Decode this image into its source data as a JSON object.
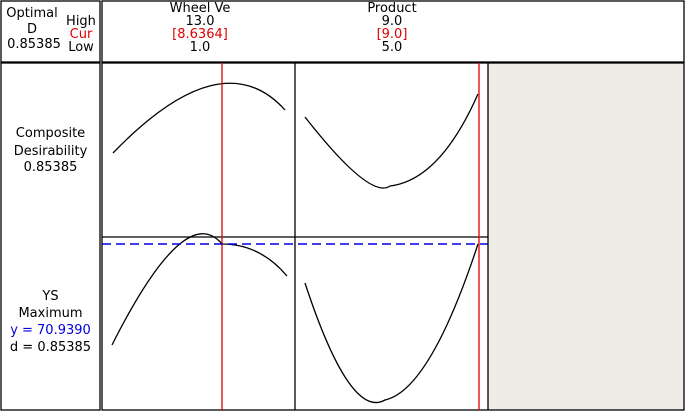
{
  "header": {
    "optimal": "Optimal",
    "d_label": "D",
    "d_value": "0.85385",
    "high": "High",
    "cur": "Cur",
    "low": "Low"
  },
  "factors": [
    {
      "name": "Wheel Ve",
      "high": "13.0",
      "cur": "[8.6364]",
      "low": "1.0"
    },
    {
      "name": "Product",
      "high": "9.0",
      "cur": "[9.0]",
      "low": "5.0"
    }
  ],
  "rows": [
    {
      "label": "Composite Desirability",
      "value": "0.85385"
    },
    {
      "label": "YS",
      "goal": "Maximum",
      "y": "y = 70.9390",
      "d": "d = 0.85385"
    }
  ]
}
